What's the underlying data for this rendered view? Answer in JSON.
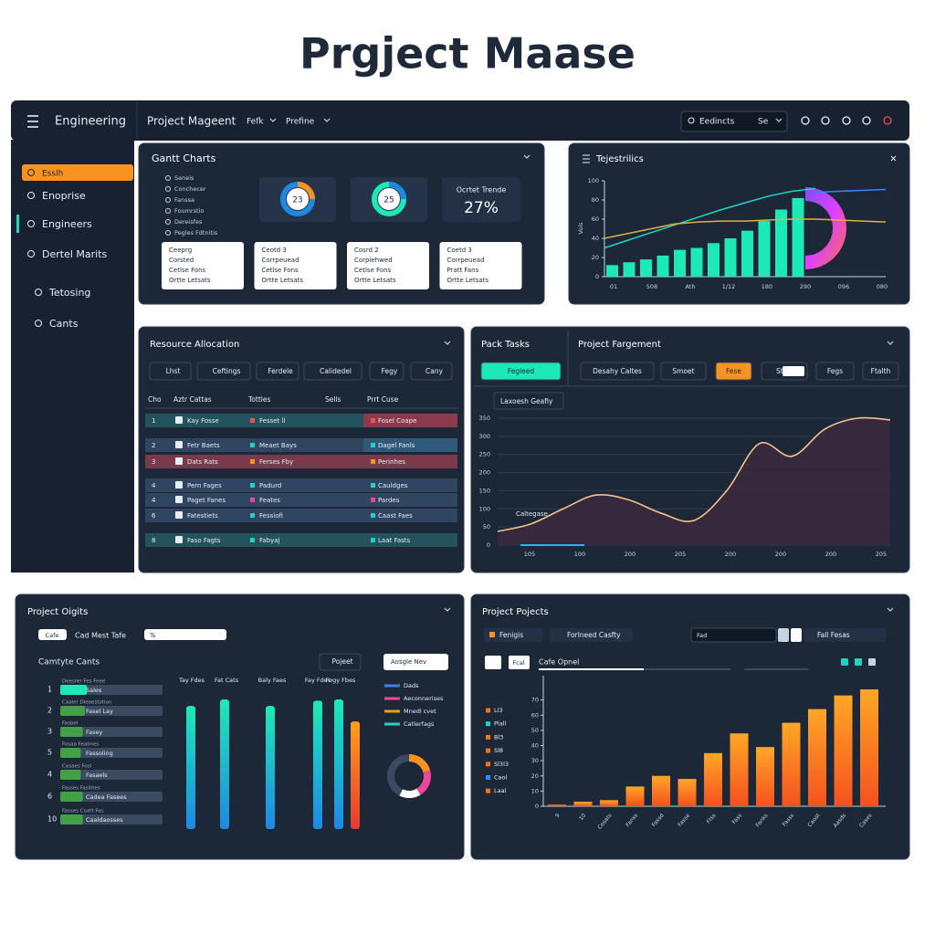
{
  "title": "Prgject Maase",
  "topbar": {
    "brand": "Engineering",
    "nav": [
      "Project Mageent",
      "Fefk",
      "Prefine"
    ],
    "search": "Eedincts",
    "search_btn": "Se"
  },
  "sidebar": [
    "Esslh",
    "Enoprise",
    "Engineers",
    "Dertel Marits",
    "Tetosing",
    "Cants"
  ],
  "gantt": {
    "title": "Gantt Charts",
    "legend": [
      "Seneis",
      "Conchecer",
      "Fanssa",
      "Foumrstio",
      "Dereisfes",
      "Pegles Fdtnitis"
    ],
    "donuts": [
      "23",
      "25"
    ],
    "stat": {
      "label": "Ocrtet Trende",
      "value": "27%"
    },
    "cards": [
      [
        "Ceeprg",
        "Corsted",
        "Cetlse Fons",
        "Ortte Letsats"
      ],
      [
        "Ceotd 3",
        "Corrpeuead",
        "Cetlse Fons",
        "Ortte Letsats"
      ],
      [
        "Cosrd 2",
        "Corpiehwed",
        "Cetlse Fons",
        "Ortte Letsats"
      ],
      [
        "Coetd 3",
        "Corrpeuead",
        "Pratt Fans",
        "Ortte Letsats"
      ]
    ]
  },
  "trends": {
    "type": "bar",
    "title": "Tejestrilics",
    "y_label": "Vols",
    "ylim": [
      0,
      100
    ],
    "yticks": [
      0,
      20,
      40,
      60,
      80,
      100
    ],
    "x_labels": [
      "01",
      "508",
      "Ath",
      "1/12",
      "180",
      "290",
      "096",
      "080"
    ],
    "values": [
      12,
      15,
      18,
      22,
      28,
      30,
      35,
      40,
      48,
      58,
      70,
      82
    ],
    "color": "#1de9b6",
    "lines": [
      {
        "color": "#22d3c5",
        "values": [
          30,
          38,
          46,
          54,
          62,
          70,
          77,
          84,
          89,
          92,
          null,
          null,
          null
        ]
      },
      {
        "color": "#e0b040",
        "values": [
          40,
          45,
          50,
          55,
          57,
          58,
          58,
          59,
          60,
          60,
          59,
          58,
          57
        ]
      },
      {
        "color": "#3b82f6",
        "values": [
          null,
          null,
          null,
          null,
          null,
          null,
          null,
          null,
          null,
          88,
          89,
          90,
          91
        ]
      }
    ]
  },
  "resources": {
    "title": "Resource Allocation",
    "buttons": [
      "Lhst",
      "Ceftings",
      "Ferdele",
      "Calidedel",
      "Fegy",
      "Cany"
    ],
    "headers": [
      "Cho",
      "Aztr Cattas",
      "Tottles",
      "Sells",
      "Prrt Cuse"
    ],
    "rows": [
      [
        "1",
        "Kay Fosse",
        "Fesset ll",
        "Fosel Coape"
      ],
      [
        "2",
        "Fetr Baets",
        "Meaet Bays",
        "Dagel Fanls"
      ],
      [
        "3",
        "Dats Rats",
        "Ferses Fby",
        "Perinhes"
      ],
      [
        "4",
        "Pern Fages",
        "Padurd",
        "Cauldges"
      ],
      [
        "4",
        "Paget Fanes",
        "Feates",
        "Pardes"
      ],
      [
        "6",
        "Fatestiets",
        "Fessiofi",
        "Caast Faes"
      ],
      [
        "8",
        "Faso Fagts",
        "Fabyaj",
        "Laat Fasts"
      ]
    ]
  },
  "tasks": {
    "type": "area",
    "tabs": [
      "Pack Tasks",
      "Project Fargement"
    ],
    "buttons": [
      "Fegleed",
      "Desahy Caltes",
      "Smoet",
      "Fese",
      "Ste",
      "Fegs",
      "Ftalth"
    ],
    "legend": "Laxoesh Geafiy",
    "annotation": "Caltegase",
    "ylim": [
      0,
      350
    ],
    "yticks": [
      0,
      50,
      100,
      150,
      200,
      250,
      300,
      350
    ],
    "x_labels": [
      "105",
      "100",
      "200",
      "205",
      "200",
      "200",
      "200",
      "205"
    ],
    "values": [
      38,
      58,
      100,
      138,
      125,
      88,
      68,
      150,
      280,
      245,
      320,
      350,
      345
    ],
    "color": "#f5c28a"
  },
  "objects": {
    "type": "bar",
    "title": "Project Oigits",
    "controls": [
      "Cafe",
      "Cad Mest Tafe",
      "Ts"
    ],
    "subtitle": "Camtyte Cants",
    "button": "Pojeet",
    "filter": "Aosgle Nev",
    "rows": [
      {
        "num": "1",
        "label": "Deesrer Fes Feee",
        "name": "Sales",
        "value": 26
      },
      {
        "num": "2",
        "label": "Caaler Dieoestotion",
        "name": "Fasel Lay",
        "value": 24
      },
      {
        "num": "3",
        "label": "Fasbel",
        "name": "Fasey",
        "value": 22
      },
      {
        "num": "5",
        "label": "Fosaa Fealines",
        "name": "Fassoling",
        "value": 20
      },
      {
        "num": "4",
        "label": "Cosaes Fosl",
        "name": "Fasaels",
        "value": 20
      },
      {
        "num": "6",
        "label": "Fasses Fasilites",
        "name": "Cadea Fasees",
        "value": 22
      },
      {
        "num": "10",
        "label": "Fasses Coatt Fas",
        "name": "Caaldaosses",
        "value": 22
      }
    ],
    "columns": [
      "Tay Fdes",
      "Fat Cats",
      "Baly Faes",
      "Fay Fdes",
      "Fogy Fbes"
    ],
    "ylim": [
      0,
      100
    ],
    "values": [
      95,
      100,
      95,
      99,
      100,
      83
    ],
    "legend": [
      {
        "name": "Dads",
        "color": "#3b82f6"
      },
      {
        "name": "Aeconnerises",
        "color": "#ec4899"
      },
      {
        "name": "Mnedl cvet",
        "color": "#f59e0b"
      },
      {
        "name": "Catlerfags",
        "color": "#22d3c5"
      }
    ]
  },
  "projects": {
    "type": "bar",
    "title": "Project Pojects",
    "controls": [
      "Fenigis",
      "Forlneed Casfty",
      "Fad",
      "Fall Fesas"
    ],
    "button": "Fcal",
    "chart_title": "Cafe Opnel",
    "legend": [
      {
        "name": "Ll3",
        "color": "#f97316"
      },
      {
        "name": "Plall",
        "color": "#22d3c5"
      },
      {
        "name": "Bl3",
        "color": "#f97316"
      },
      {
        "name": "Sl8",
        "color": "#f97316"
      },
      {
        "name": "Sl3l3",
        "color": "#f97316"
      },
      {
        "name": "Caol",
        "color": "#3b82f6"
      },
      {
        "name": "Laal",
        "color": "#f97316"
      }
    ],
    "ylim": [
      0,
      80
    ],
    "yticks": [
      0,
      10,
      20,
      30,
      40,
      50,
      60,
      70
    ],
    "x_labels": [
      "9",
      "10",
      "Cosats",
      "Fanss",
      "Fassd",
      "Fasse",
      "Ftss",
      "Fass",
      "Fanks",
      "Fasss",
      "Caost",
      "Aasds",
      "Cases"
    ],
    "values": [
      1,
      3,
      4,
      13,
      20,
      18,
      35,
      48,
      39,
      55,
      64,
      73,
      77
    ]
  }
}
